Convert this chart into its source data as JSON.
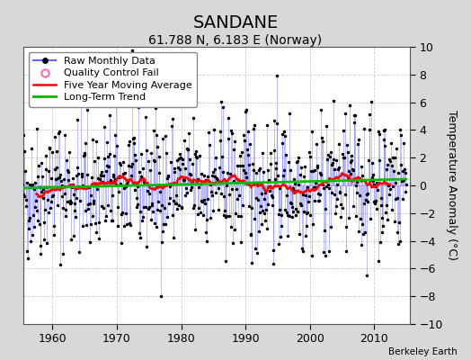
{
  "title": "SANDANE",
  "subtitle": "61.788 N, 6.183 E (Norway)",
  "ylabel": "Temperature Anomaly (°C)",
  "attribution": "Berkeley Earth",
  "xlim": [
    1955.5,
    2015.5
  ],
  "ylim": [
    -10,
    10
  ],
  "yticks": [
    -10,
    -8,
    -6,
    -4,
    -2,
    0,
    2,
    4,
    6,
    8,
    10
  ],
  "xticks": [
    1960,
    1970,
    1980,
    1990,
    2000,
    2010
  ],
  "start_year": 1955,
  "end_year": 2014,
  "raw_color": "#6666ff",
  "dot_color": "#000000",
  "ma_color": "#ff0000",
  "trend_color": "#00bb00",
  "qc_color": "#ff69b4",
  "plot_bg_color": "#ffffff",
  "fig_bg_color": "#d8d8d8",
  "grid_color": "#cccccc",
  "title_fontsize": 14,
  "subtitle_fontsize": 10,
  "ylabel_fontsize": 9,
  "tick_fontsize": 9,
  "legend_fontsize": 8
}
